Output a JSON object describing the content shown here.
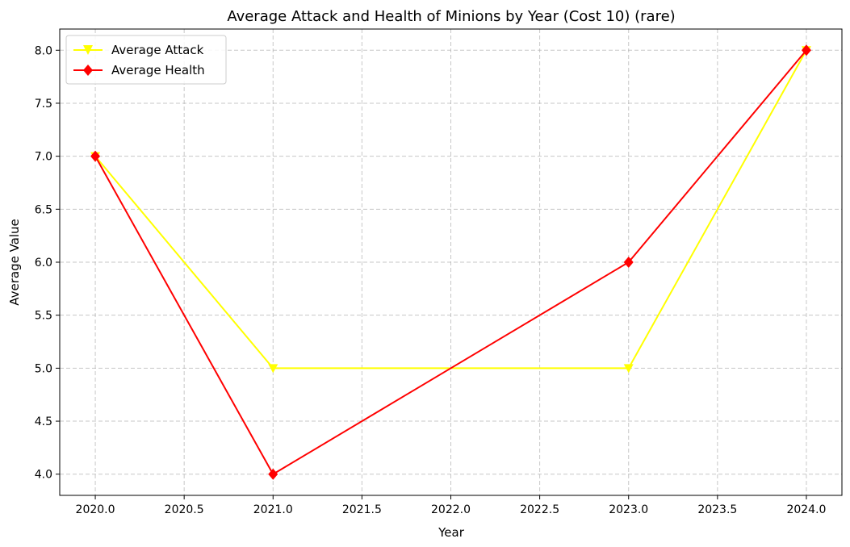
{
  "chart_data": {
    "type": "line",
    "title": "Average Attack and Health of Minions by Year (Cost 10) (rare)",
    "xlabel": "Year",
    "ylabel": "Average Value",
    "x": [
      2020,
      2021,
      2023,
      2024
    ],
    "xlim": [
      2019.8,
      2024.2
    ],
    "ylim": [
      3.8,
      8.2
    ],
    "x_ticks": [
      "2020.0",
      "2020.5",
      "2021.0",
      "2021.5",
      "2022.0",
      "2022.5",
      "2023.0",
      "2023.5",
      "2024.0"
    ],
    "y_ticks": [
      "4.0",
      "4.5",
      "5.0",
      "5.5",
      "6.0",
      "6.5",
      "7.0",
      "7.5",
      "8.0"
    ],
    "grid": true,
    "legend_position": "top-left",
    "series": [
      {
        "name": "Average Attack",
        "values": [
          7,
          5,
          5,
          8
        ],
        "color": "#ffff00",
        "marker": "triangle-down"
      },
      {
        "name": "Average Health",
        "values": [
          7,
          4,
          6,
          8
        ],
        "color": "#ff0000",
        "marker": "diamond"
      }
    ]
  }
}
